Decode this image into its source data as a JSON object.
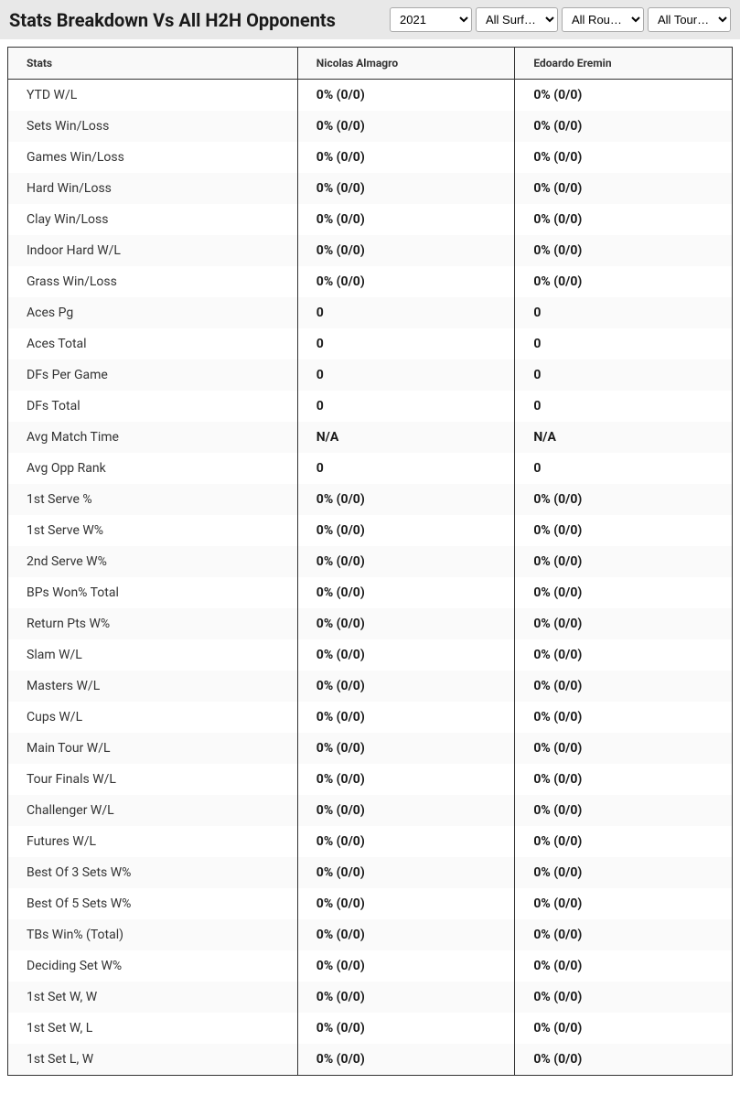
{
  "header": {
    "title": "Stats Breakdown Vs All H2H Opponents"
  },
  "filters": {
    "year": "2021",
    "surface": "All Surf…",
    "round": "All Rou…",
    "tournament": "All Tour…"
  },
  "table": {
    "columns": [
      "Stats",
      "Nicolas Almagro",
      "Edoardo Eremin"
    ],
    "rows": [
      {
        "label": "YTD W/L",
        "p1": "0% (0/0)",
        "p2": "0% (0/0)"
      },
      {
        "label": "Sets Win/Loss",
        "p1": "0% (0/0)",
        "p2": "0% (0/0)"
      },
      {
        "label": "Games Win/Loss",
        "p1": "0% (0/0)",
        "p2": "0% (0/0)"
      },
      {
        "label": "Hard Win/Loss",
        "p1": "0% (0/0)",
        "p2": "0% (0/0)"
      },
      {
        "label": "Clay Win/Loss",
        "p1": "0% (0/0)",
        "p2": "0% (0/0)"
      },
      {
        "label": "Indoor Hard W/L",
        "p1": "0% (0/0)",
        "p2": "0% (0/0)"
      },
      {
        "label": "Grass Win/Loss",
        "p1": "0% (0/0)",
        "p2": "0% (0/0)"
      },
      {
        "label": "Aces Pg",
        "p1": "0",
        "p2": "0"
      },
      {
        "label": "Aces Total",
        "p1": "0",
        "p2": "0"
      },
      {
        "label": "DFs Per Game",
        "p1": "0",
        "p2": "0"
      },
      {
        "label": "DFs Total",
        "p1": "0",
        "p2": "0"
      },
      {
        "label": "Avg Match Time",
        "p1": "N/A",
        "p2": "N/A"
      },
      {
        "label": "Avg Opp Rank",
        "p1": "0",
        "p2": "0"
      },
      {
        "label": "1st Serve %",
        "p1": "0% (0/0)",
        "p2": "0% (0/0)"
      },
      {
        "label": "1st Serve W%",
        "p1": "0% (0/0)",
        "p2": "0% (0/0)"
      },
      {
        "label": "2nd Serve W%",
        "p1": "0% (0/0)",
        "p2": "0% (0/0)"
      },
      {
        "label": "BPs Won% Total",
        "p1": "0% (0/0)",
        "p2": "0% (0/0)"
      },
      {
        "label": "Return Pts W%",
        "p1": "0% (0/0)",
        "p2": "0% (0/0)"
      },
      {
        "label": "Slam W/L",
        "p1": "0% (0/0)",
        "p2": "0% (0/0)"
      },
      {
        "label": "Masters W/L",
        "p1": "0% (0/0)",
        "p2": "0% (0/0)"
      },
      {
        "label": "Cups W/L",
        "p1": "0% (0/0)",
        "p2": "0% (0/0)"
      },
      {
        "label": "Main Tour W/L",
        "p1": "0% (0/0)",
        "p2": "0% (0/0)"
      },
      {
        "label": "Tour Finals W/L",
        "p1": "0% (0/0)",
        "p2": "0% (0/0)"
      },
      {
        "label": "Challenger W/L",
        "p1": "0% (0/0)",
        "p2": "0% (0/0)"
      },
      {
        "label": "Futures W/L",
        "p1": "0% (0/0)",
        "p2": "0% (0/0)"
      },
      {
        "label": "Best Of 3 Sets W%",
        "p1": "0% (0/0)",
        "p2": "0% (0/0)"
      },
      {
        "label": "Best Of 5 Sets W%",
        "p1": "0% (0/0)",
        "p2": "0% (0/0)"
      },
      {
        "label": "TBs Win% (Total)",
        "p1": "0% (0/0)",
        "p2": "0% (0/0)"
      },
      {
        "label": "Deciding Set W%",
        "p1": "0% (0/0)",
        "p2": "0% (0/0)"
      },
      {
        "label": "1st Set W, W",
        "p1": "0% (0/0)",
        "p2": "0% (0/0)"
      },
      {
        "label": "1st Set W, L",
        "p1": "0% (0/0)",
        "p2": "0% (0/0)"
      },
      {
        "label": "1st Set L, W",
        "p1": "0% (0/0)",
        "p2": "0% (0/0)"
      }
    ]
  }
}
